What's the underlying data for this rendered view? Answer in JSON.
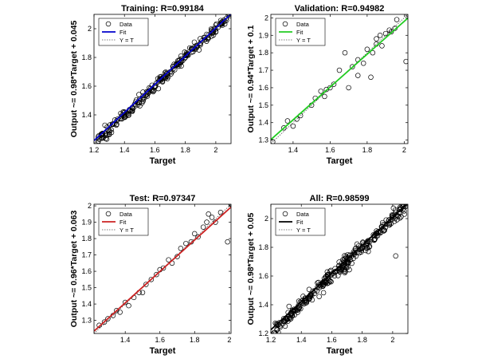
{
  "chart_data": [
    {
      "type": "scatter",
      "title": "Training: R=0.99184",
      "xlabel": "Target",
      "ylabel": "Output ~= 0.98*Target + 0.045",
      "xlim": [
        1.2,
        2.1
      ],
      "ylim": [
        1.2,
        2.1
      ],
      "xticks": [
        1.2,
        1.4,
        1.6,
        1.8,
        2
      ],
      "yticks": [
        1.4,
        1.6,
        1.8,
        2
      ],
      "fit": {
        "slope": 0.98,
        "intercept": 0.045,
        "color": "#0000cc"
      },
      "legend": {
        "position": "top-left",
        "entries": [
          "Data",
          "Fit",
          "Y = T"
        ]
      },
      "points": {
        "count": 220,
        "x_range": [
          1.22,
          2.09
        ],
        "scatter": 0.02,
        "sample": [
          [
            1.25,
            1.26
          ],
          [
            1.3,
            1.28
          ],
          [
            1.35,
            1.36
          ],
          [
            1.4,
            1.42
          ],
          [
            1.5,
            1.51
          ],
          [
            1.55,
            1.53
          ],
          [
            1.6,
            1.6
          ],
          [
            1.65,
            1.63
          ],
          [
            1.7,
            1.7
          ],
          [
            1.75,
            1.76
          ],
          [
            1.8,
            1.8
          ],
          [
            1.85,
            1.86
          ],
          [
            1.9,
            1.9
          ],
          [
            1.95,
            1.94
          ],
          [
            2.0,
            1.98
          ],
          [
            2.09,
            2.09
          ]
        ]
      }
    },
    {
      "type": "scatter",
      "title": "Validation: R=0.94982",
      "xlabel": "Target",
      "ylabel": "Output ~= 0.94*Target + 0.1",
      "xlim": [
        1.28,
        2.02
      ],
      "ylim": [
        1.28,
        2.02
      ],
      "xticks": [
        1.4,
        1.6,
        1.8,
        2
      ],
      "yticks": [
        1.3,
        1.4,
        1.5,
        1.6,
        1.7,
        1.8,
        1.9,
        2
      ],
      "fit": {
        "slope": 0.94,
        "intercept": 0.1,
        "color": "#22cc22"
      },
      "legend": {
        "position": "top-left",
        "entries": [
          "Data",
          "Fit",
          "Y = T"
        ]
      },
      "points": {
        "list": [
          [
            1.29,
            1.29
          ],
          [
            1.35,
            1.37
          ],
          [
            1.37,
            1.41
          ],
          [
            1.4,
            1.38
          ],
          [
            1.42,
            1.42
          ],
          [
            1.44,
            1.44
          ],
          [
            1.5,
            1.5
          ],
          [
            1.52,
            1.54
          ],
          [
            1.55,
            1.58
          ],
          [
            1.57,
            1.55
          ],
          [
            1.58,
            1.59
          ],
          [
            1.6,
            1.6
          ],
          [
            1.62,
            1.62
          ],
          [
            1.65,
            1.7
          ],
          [
            1.68,
            1.8
          ],
          [
            1.7,
            1.6
          ],
          [
            1.72,
            1.72
          ],
          [
            1.75,
            1.67
          ],
          [
            1.75,
            1.76
          ],
          [
            1.78,
            1.74
          ],
          [
            1.8,
            1.82
          ],
          [
            1.82,
            1.66
          ],
          [
            1.83,
            1.8
          ],
          [
            1.85,
            1.85
          ],
          [
            1.85,
            1.88
          ],
          [
            1.87,
            1.9
          ],
          [
            1.88,
            1.84
          ],
          [
            1.9,
            1.91
          ],
          [
            1.92,
            1.93
          ],
          [
            1.93,
            1.92
          ],
          [
            1.95,
            1.94
          ],
          [
            1.96,
            1.99
          ],
          [
            2.01,
            1.75
          ]
        ]
      }
    },
    {
      "type": "scatter",
      "title": "Test: R=0.97347",
      "xlabel": "Target",
      "ylabel": "Output ~= 0.96*Target + 0.063",
      "xlim": [
        1.22,
        2.01
      ],
      "ylim": [
        1.22,
        2.01
      ],
      "xticks": [
        1.4,
        1.6,
        1.8,
        2
      ],
      "yticks": [
        1.3,
        1.4,
        1.5,
        1.6,
        1.7,
        1.8,
        1.9,
        2
      ],
      "fit": {
        "slope": 0.96,
        "intercept": 0.063,
        "color": "#cc2222"
      },
      "legend": {
        "position": "top-left",
        "entries": [
          "Data",
          "Fit",
          "Y = T"
        ]
      },
      "points": {
        "list": [
          [
            1.25,
            1.27
          ],
          [
            1.28,
            1.29
          ],
          [
            1.3,
            1.31
          ],
          [
            1.33,
            1.33
          ],
          [
            1.35,
            1.36
          ],
          [
            1.37,
            1.35
          ],
          [
            1.4,
            1.41
          ],
          [
            1.42,
            1.39
          ],
          [
            1.45,
            1.44
          ],
          [
            1.48,
            1.47
          ],
          [
            1.5,
            1.47
          ],
          [
            1.52,
            1.52
          ],
          [
            1.55,
            1.55
          ],
          [
            1.58,
            1.58
          ],
          [
            1.6,
            1.61
          ],
          [
            1.62,
            1.62
          ],
          [
            1.65,
            1.67
          ],
          [
            1.67,
            1.65
          ],
          [
            1.7,
            1.69
          ],
          [
            1.72,
            1.74
          ],
          [
            1.75,
            1.77
          ],
          [
            1.78,
            1.78
          ],
          [
            1.8,
            1.83
          ],
          [
            1.82,
            1.81
          ],
          [
            1.85,
            1.87
          ],
          [
            1.87,
            1.9
          ],
          [
            1.88,
            1.95
          ],
          [
            1.9,
            1.93
          ],
          [
            1.92,
            1.9
          ],
          [
            1.95,
            1.96
          ],
          [
            1.99,
            1.78
          ]
        ]
      }
    },
    {
      "type": "scatter",
      "title": "All: R=0.98599",
      "xlabel": "Target",
      "ylabel": "Output ~= 0.98*Target + 0.05",
      "xlim": [
        1.2,
        2.1
      ],
      "ylim": [
        1.2,
        2.1
      ],
      "xticks": [
        1.2,
        1.4,
        1.6,
        1.8,
        2
      ],
      "yticks": [
        1.2,
        1.4,
        1.6,
        1.8,
        2
      ],
      "fit": {
        "slope": 0.98,
        "intercept": 0.05,
        "color": "#000000"
      },
      "legend": {
        "position": "top-left",
        "entries": [
          "Data",
          "Fit",
          "Y = T"
        ]
      },
      "points": {
        "count": 300,
        "x_range": [
          1.22,
          2.09
        ],
        "scatter": 0.025,
        "sample": [
          [
            1.25,
            1.26
          ],
          [
            1.35,
            1.36
          ],
          [
            1.45,
            1.44
          ],
          [
            1.55,
            1.56
          ],
          [
            1.65,
            1.64
          ],
          [
            1.75,
            1.76
          ],
          [
            1.85,
            1.84
          ],
          [
            1.95,
            1.96
          ],
          [
            2.02,
            1.74
          ],
          [
            2.09,
            2.09
          ]
        ]
      }
    }
  ]
}
